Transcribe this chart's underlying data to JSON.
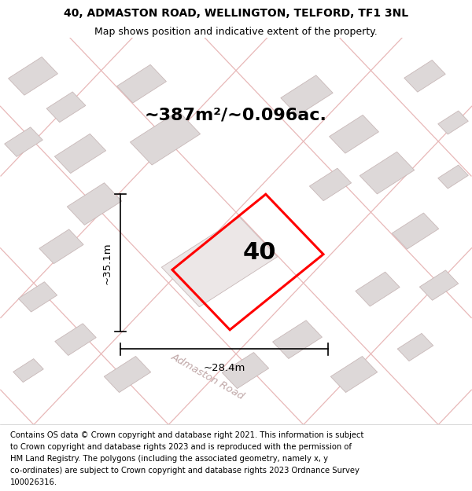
{
  "title_line1": "40, ADMASTON ROAD, WELLINGTON, TELFORD, TF1 3NL",
  "title_line2": "Map shows position and indicative extent of the property.",
  "area_label": "~387m²/~0.096ac.",
  "width_label": "~28.4m",
  "height_label": "~35.1m",
  "number_label": "40",
  "road_label": "Admaston Road",
  "footer_lines": [
    "Contains OS data © Crown copyright and database right 2021. This information is subject",
    "to Crown copyright and database rights 2023 and is reproduced with the permission of",
    "HM Land Registry. The polygons (including the associated geometry, namely x, y",
    "co-ordinates) are subject to Crown copyright and database rights 2023 Ordnance Survey",
    "100026316."
  ],
  "map_bg": "#f7f2f2",
  "block_color": "#ddd8d8",
  "block_edge": "#c8b8b8",
  "road_line_color": "#e8b8b8",
  "title_fontsize": 10,
  "subtitle_fontsize": 9,
  "area_fontsize": 16,
  "number_fontsize": 22,
  "dim_fontsize": 9.5,
  "road_fontsize": 9.5,
  "footer_fontsize": 7.2
}
